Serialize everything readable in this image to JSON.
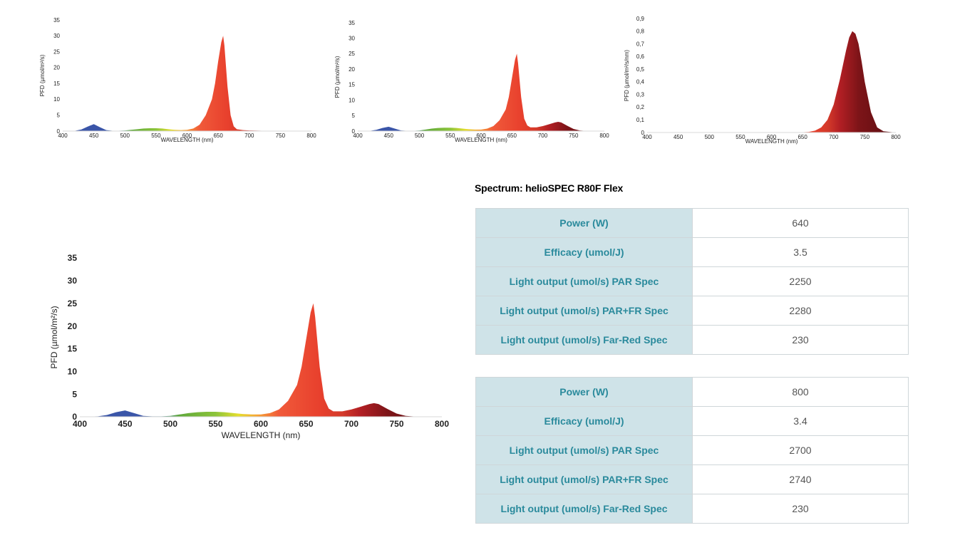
{
  "title": "Spectrum: helioSPEC R80F Flex",
  "tables": [
    {
      "rows": [
        {
          "label": "Power (W)",
          "value": "640"
        },
        {
          "label": "Efficacy (umol/J)",
          "value": "3.5"
        },
        {
          "label": "Light output (umol/s) PAR Spec",
          "value": "2250"
        },
        {
          "label": "Light output (umol/s) PAR+FR Spec",
          "value": "2280"
        },
        {
          "label": "Light output (umol/s) Far-Red Spec",
          "value": "230"
        }
      ]
    },
    {
      "rows": [
        {
          "label": "Power (W)",
          "value": "800"
        },
        {
          "label": "Efficacy (umol/J)",
          "value": "3.4"
        },
        {
          "label": "Light output (umol/s) PAR Spec",
          "value": "2700"
        },
        {
          "label": "Light output (umol/s) PAR+FR Spec",
          "value": "2740"
        },
        {
          "label": "Light output (umol/s) Far-Red Spec",
          "value": "230"
        }
      ]
    }
  ],
  "chart_data": [
    {
      "type": "area",
      "xlabel": "WAVELENGTH (nm)",
      "ylabel": "PFD (µmol/m²/s)",
      "xlim": [
        400,
        800
      ],
      "ylim": [
        0,
        35
      ],
      "x_ticks": [
        "400",
        "450",
        "500",
        "550",
        "600",
        "650",
        "700",
        "750",
        "800"
      ],
      "y_ticks": [
        "0",
        "5",
        "10",
        "15",
        "20",
        "25",
        "30",
        "35"
      ],
      "x": [
        400,
        420,
        430,
        440,
        450,
        460,
        470,
        480,
        490,
        500,
        510,
        520,
        530,
        540,
        550,
        560,
        570,
        580,
        590,
        600,
        610,
        620,
        630,
        640,
        645,
        650,
        655,
        658,
        660,
        665,
        670,
        675,
        680,
        690,
        700,
        720,
        740,
        760,
        780,
        800
      ],
      "y": [
        0,
        0.1,
        0.5,
        1.4,
        2.2,
        1.2,
        0.3,
        0.1,
        0.1,
        0.2,
        0.4,
        0.6,
        0.8,
        0.9,
        0.9,
        0.8,
        0.6,
        0.4,
        0.3,
        0.4,
        0.8,
        2,
        5,
        10,
        15,
        22,
        28,
        30,
        27,
        14,
        5,
        1.5,
        0.6,
        0.3,
        0.2,
        0.1,
        0.1,
        0,
        0,
        0
      ],
      "grid": false
    },
    {
      "type": "area",
      "xlabel": "WAVELENGTH (nm)",
      "ylabel": "PFD (µmol/m²/s)",
      "xlim": [
        400,
        800
      ],
      "ylim": [
        0,
        35
      ],
      "x_ticks": [
        "400",
        "450",
        "500",
        "550",
        "600",
        "650",
        "700",
        "750",
        "800"
      ],
      "y_ticks": [
        "0",
        "5",
        "10",
        "15",
        "20",
        "25",
        "30",
        "35"
      ],
      "x": [
        400,
        420,
        430,
        440,
        450,
        460,
        470,
        480,
        490,
        500,
        510,
        520,
        530,
        540,
        550,
        560,
        570,
        580,
        590,
        600,
        610,
        620,
        630,
        640,
        645,
        650,
        655,
        658,
        660,
        665,
        670,
        675,
        680,
        690,
        700,
        710,
        720,
        725,
        730,
        740,
        750,
        760,
        770,
        780,
        800
      ],
      "y": [
        0,
        0.1,
        0.4,
        1,
        1.4,
        0.8,
        0.2,
        0.1,
        0.1,
        0.2,
        0.5,
        0.8,
        1,
        1.1,
        1.1,
        1,
        0.8,
        0.6,
        0.5,
        0.5,
        0.8,
        1.6,
        3.5,
        7,
        11,
        17,
        23,
        25,
        22,
        11,
        4,
        1.8,
        1.2,
        1.2,
        1.6,
        2.2,
        2.8,
        3,
        2.8,
        1.7,
        0.7,
        0.2,
        0.05,
        0,
        0
      ],
      "grid": false
    },
    {
      "type": "area",
      "xlabel": "WAVELENGTH (nm)",
      "ylabel": "PFD (µmol/m²/s/nm)",
      "xlim": [
        400,
        800
      ],
      "ylim": [
        0,
        0.9
      ],
      "x_ticks": [
        "400",
        "450",
        "500",
        "550",
        "600",
        "650",
        "700",
        "750",
        "800"
      ],
      "y_ticks": [
        "0",
        "0,1",
        "0,2",
        "0,3",
        "0,4",
        "0,5",
        "0,6",
        "0,7",
        "0,8",
        "0,9"
      ],
      "x": [
        400,
        600,
        640,
        660,
        670,
        680,
        690,
        700,
        710,
        720,
        725,
        730,
        735,
        740,
        745,
        750,
        760,
        770,
        780,
        800
      ],
      "y": [
        0,
        0,
        0,
        0.005,
        0.015,
        0.04,
        0.1,
        0.22,
        0.42,
        0.65,
        0.75,
        0.8,
        0.78,
        0.7,
        0.56,
        0.4,
        0.16,
        0.04,
        0.01,
        0
      ],
      "grid": false
    },
    {
      "type": "area",
      "xlabel": "WAVELENGTH (nm)",
      "ylabel": "PFD (µmol/m²/s)",
      "xlim": [
        400,
        800
      ],
      "ylim": [
        0,
        35
      ],
      "x_ticks": [
        "400",
        "450",
        "500",
        "550",
        "600",
        "650",
        "700",
        "750",
        "800"
      ],
      "y_ticks": [
        "0",
        "5",
        "10",
        "15",
        "20",
        "25",
        "30",
        "35"
      ],
      "x": [
        400,
        420,
        430,
        440,
        450,
        460,
        470,
        480,
        490,
        500,
        510,
        520,
        530,
        540,
        550,
        560,
        570,
        580,
        590,
        600,
        610,
        620,
        630,
        640,
        645,
        650,
        655,
        658,
        660,
        665,
        670,
        675,
        680,
        690,
        700,
        710,
        720,
        725,
        730,
        740,
        750,
        760,
        770,
        780,
        800
      ],
      "y": [
        0,
        0.1,
        0.4,
        1,
        1.4,
        0.8,
        0.2,
        0.1,
        0.1,
        0.2,
        0.5,
        0.8,
        1,
        1.1,
        1.1,
        1,
        0.8,
        0.6,
        0.5,
        0.5,
        0.8,
        1.6,
        3.5,
        7,
        11,
        17,
        23,
        25,
        22,
        11,
        4,
        1.8,
        1.2,
        1.2,
        1.6,
        2.2,
        2.8,
        3,
        2.8,
        1.7,
        0.7,
        0.2,
        0.05,
        0,
        0
      ],
      "grid": false
    }
  ]
}
